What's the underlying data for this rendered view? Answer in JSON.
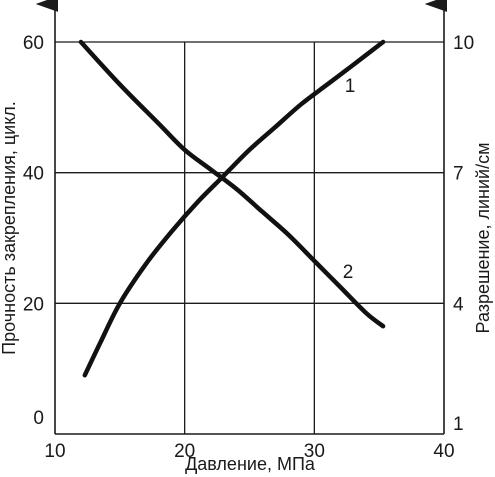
{
  "chart_data": {
    "type": "line",
    "title": "",
    "xlabel": "Давление, МПа",
    "ylabel_left": "Прочность закрепления, цикл.",
    "ylabel_right": "Разрешение, линий/см",
    "xlim": [
      10,
      40
    ],
    "ylim_left": [
      0,
      60
    ],
    "ylim_right": [
      1,
      10
    ],
    "x_ticks": [
      "10",
      "20",
      "30",
      "40"
    ],
    "y_left_ticks": [
      "0",
      "20",
      "40",
      "60"
    ],
    "y_right_ticks": [
      "1",
      "4",
      "7",
      "10"
    ],
    "grid": true,
    "series": [
      {
        "name": "1",
        "axis": "left",
        "x": [
          12.3,
          13.5,
          15,
          17,
          19,
          21,
          23,
          25,
          27,
          29,
          31,
          33,
          35.3
        ],
        "y": [
          9,
          14,
          20,
          26,
          31,
          35.5,
          39.5,
          43.5,
          47,
          50.5,
          53.5,
          56.5,
          60
        ]
      },
      {
        "name": "2",
        "axis": "left",
        "x": [
          12,
          15,
          18,
          20,
          22,
          24,
          26,
          28,
          30,
          32,
          34,
          35.3
        ],
        "y": [
          60,
          53.5,
          47.5,
          43.5,
          40.5,
          37.5,
          34,
          30.5,
          26.5,
          22.5,
          18.5,
          16.5
        ]
      }
    ]
  }
}
